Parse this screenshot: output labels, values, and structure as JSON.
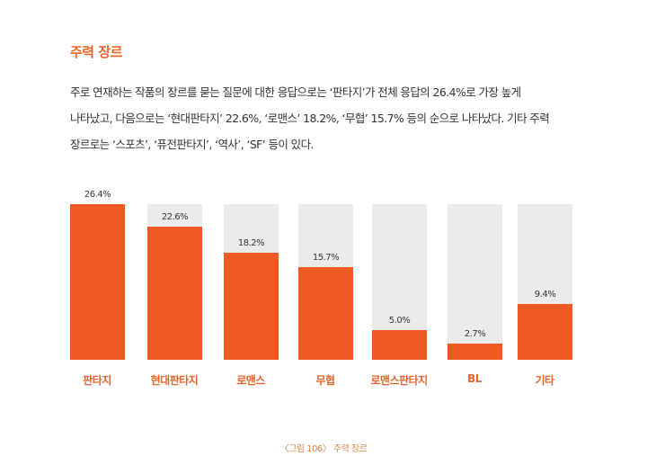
{
  "section": {
    "title": "주력 장르",
    "paragraph": [
      "주로 연재하는 작품의 장르를 묻는 질문에 대한 응답으로는 ‘판타지’가 전체 응답의 26.4%로 가장 높게",
      "나타났고, 다음으로는 ‘현대판타지’ 22.6%, ‘로맨스’ 18.2%, ‘무협’ 15.7% 등의 순으로 나타났다. 기타 주력",
      "장르로는 ‘스포츠’, ‘퓨전판타지’, ‘역사’, ‘SF’ 등이 있다."
    ]
  },
  "colors": {
    "accent": "#ef5a22",
    "track": "#ebebeb",
    "title": "#e8652c"
  },
  "chart_data": {
    "type": "bar",
    "title": "주력 장르",
    "categories": [
      "판타지",
      "현대판타지",
      "로맨스",
      "무협",
      "로맨스판타지",
      "BL",
      "기타"
    ],
    "values": [
      26.4,
      22.6,
      18.2,
      15.7,
      5.0,
      2.7,
      9.4
    ],
    "value_labels": [
      "26.4%",
      "22.6%",
      "18.2%",
      "15.7%",
      "5.0%",
      "2.7%",
      "9.4%"
    ],
    "xlabel": "",
    "ylabel": "",
    "ylim": [
      0,
      26.4
    ],
    "grid": false,
    "legend": null
  },
  "caption": "〈그림 106〉 주력 장르"
}
